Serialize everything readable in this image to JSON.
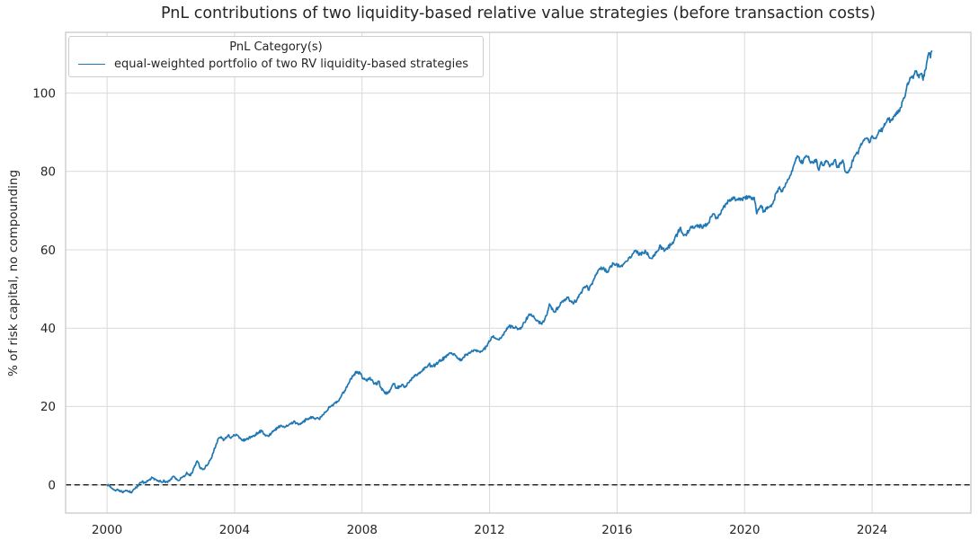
{
  "chart_data": {
    "type": "line",
    "title": "PnL contributions of two liquidity-based relative value strategies (before transaction costs)",
    "xlabel": "",
    "ylabel": "% of risk capital, no compounding",
    "xlim": [
      1998.7,
      2027.1
    ],
    "ylim": [
      -7.2,
      115.5
    ],
    "xticks": [
      2000,
      2004,
      2008,
      2012,
      2016,
      2020,
      2024
    ],
    "yticks": [
      0,
      20,
      40,
      60,
      80,
      100
    ],
    "grid": true,
    "legend_position": "upper left",
    "zero_line": {
      "y": 0,
      "style": "dashed",
      "color": "#000000"
    },
    "legend": {
      "title": "PnL Category(s)"
    },
    "series": [
      {
        "name": "equal-weighted portfolio of two RV liquidity-based strategies",
        "color": "#1f77b4",
        "points": [
          [
            2000.0,
            0.0
          ],
          [
            2000.08,
            -0.3
          ],
          [
            2000.16,
            -0.9
          ],
          [
            2000.25,
            -1.4
          ],
          [
            2000.33,
            -1.1
          ],
          [
            2000.42,
            -1.7
          ],
          [
            2000.5,
            -2.0
          ],
          [
            2000.58,
            -1.4
          ],
          [
            2000.67,
            -1.7
          ],
          [
            2000.75,
            -1.9
          ],
          [
            2000.83,
            -1.2
          ],
          [
            2000.92,
            -0.7
          ],
          [
            2001.0,
            0.2
          ],
          [
            2001.1,
            0.8
          ],
          [
            2001.2,
            0.5
          ],
          [
            2001.3,
            1.2
          ],
          [
            2001.42,
            1.8
          ],
          [
            2001.5,
            1.5
          ],
          [
            2001.6,
            1.1
          ],
          [
            2001.7,
            0.8
          ],
          [
            2001.8,
            1.0
          ],
          [
            2001.9,
            0.6
          ],
          [
            2002.0,
            1.5
          ],
          [
            2002.08,
            2.2
          ],
          [
            2002.17,
            1.6
          ],
          [
            2002.25,
            1.1
          ],
          [
            2002.33,
            1.8
          ],
          [
            2002.42,
            2.1
          ],
          [
            2002.5,
            3.2
          ],
          [
            2002.58,
            2.4
          ],
          [
            2002.67,
            3.0
          ],
          [
            2002.75,
            4.9
          ],
          [
            2002.83,
            6.1
          ],
          [
            2002.9,
            4.7
          ],
          [
            2003.0,
            3.9
          ],
          [
            2003.08,
            4.5
          ],
          [
            2003.17,
            5.3
          ],
          [
            2003.25,
            6.6
          ],
          [
            2003.33,
            8.2
          ],
          [
            2003.42,
            10.4
          ],
          [
            2003.5,
            11.9
          ],
          [
            2003.58,
            12.3
          ],
          [
            2003.65,
            11.3
          ],
          [
            2003.72,
            12.1
          ],
          [
            2003.8,
            12.7
          ],
          [
            2003.88,
            11.9
          ],
          [
            2003.95,
            12.4
          ],
          [
            2004.05,
            12.9
          ],
          [
            2004.15,
            11.9
          ],
          [
            2004.25,
            11.3
          ],
          [
            2004.35,
            11.6
          ],
          [
            2004.45,
            12.0
          ],
          [
            2004.55,
            12.2
          ],
          [
            2004.65,
            12.8
          ],
          [
            2004.75,
            13.4
          ],
          [
            2004.85,
            13.7
          ],
          [
            2004.95,
            12.9
          ],
          [
            2005.05,
            12.5
          ],
          [
            2005.15,
            13.1
          ],
          [
            2005.25,
            14.0
          ],
          [
            2005.35,
            14.5
          ],
          [
            2005.45,
            15.2
          ],
          [
            2005.55,
            14.8
          ],
          [
            2005.65,
            15.0
          ],
          [
            2005.75,
            15.7
          ],
          [
            2005.85,
            16.1
          ],
          [
            2005.95,
            15.8
          ],
          [
            2006.05,
            15.6
          ],
          [
            2006.15,
            16.2
          ],
          [
            2006.25,
            16.7
          ],
          [
            2006.35,
            17.1
          ],
          [
            2006.45,
            17.4
          ],
          [
            2006.55,
            17.0
          ],
          [
            2006.65,
            16.8
          ],
          [
            2006.75,
            17.8
          ],
          [
            2006.85,
            18.5
          ],
          [
            2006.95,
            19.7
          ],
          [
            2007.05,
            20.3
          ],
          [
            2007.15,
            20.9
          ],
          [
            2007.25,
            21.4
          ],
          [
            2007.35,
            22.7
          ],
          [
            2007.45,
            24.0
          ],
          [
            2007.55,
            25.6
          ],
          [
            2007.65,
            27.1
          ],
          [
            2007.75,
            28.2
          ],
          [
            2007.85,
            28.9
          ],
          [
            2007.95,
            28.3
          ],
          [
            2008.05,
            27.0
          ],
          [
            2008.15,
            26.5
          ],
          [
            2008.25,
            27.4
          ],
          [
            2008.35,
            26.2
          ],
          [
            2008.45,
            25.6
          ],
          [
            2008.52,
            26.5
          ],
          [
            2008.6,
            24.8
          ],
          [
            2008.7,
            23.6
          ],
          [
            2008.8,
            23.3
          ],
          [
            2008.9,
            24.4
          ],
          [
            2009.0,
            25.8
          ],
          [
            2009.08,
            24.7
          ],
          [
            2009.17,
            25.1
          ],
          [
            2009.25,
            25.6
          ],
          [
            2009.33,
            24.9
          ],
          [
            2009.42,
            25.9
          ],
          [
            2009.5,
            26.6
          ],
          [
            2009.6,
            27.3
          ],
          [
            2009.7,
            28.1
          ],
          [
            2009.8,
            28.7
          ],
          [
            2009.9,
            29.3
          ],
          [
            2010.0,
            30.1
          ],
          [
            2010.1,
            30.8
          ],
          [
            2010.2,
            30.2
          ],
          [
            2010.3,
            30.6
          ],
          [
            2010.4,
            31.4
          ],
          [
            2010.5,
            31.9
          ],
          [
            2010.6,
            32.5
          ],
          [
            2010.7,
            33.1
          ],
          [
            2010.8,
            33.7
          ],
          [
            2010.9,
            33.4
          ],
          [
            2011.0,
            32.3
          ],
          [
            2011.08,
            31.7
          ],
          [
            2011.17,
            32.5
          ],
          [
            2011.25,
            33.1
          ],
          [
            2011.33,
            33.5
          ],
          [
            2011.42,
            33.9
          ],
          [
            2011.5,
            34.4
          ],
          [
            2011.6,
            34.0
          ],
          [
            2011.7,
            33.8
          ],
          [
            2011.8,
            34.5
          ],
          [
            2011.9,
            35.3
          ],
          [
            2012.0,
            36.6
          ],
          [
            2012.1,
            37.7
          ],
          [
            2012.2,
            37.3
          ],
          [
            2012.3,
            37.0
          ],
          [
            2012.4,
            38.1
          ],
          [
            2012.5,
            39.2
          ],
          [
            2012.6,
            40.3
          ],
          [
            2012.7,
            40.6
          ],
          [
            2012.8,
            40.1
          ],
          [
            2012.9,
            39.8
          ],
          [
            2013.0,
            40.2
          ],
          [
            2013.1,
            41.5
          ],
          [
            2013.2,
            42.9
          ],
          [
            2013.3,
            43.6
          ],
          [
            2013.4,
            42.7
          ],
          [
            2013.5,
            42.0
          ],
          [
            2013.6,
            41.2
          ],
          [
            2013.7,
            41.6
          ],
          [
            2013.8,
            43.4
          ],
          [
            2013.88,
            46.2
          ],
          [
            2013.95,
            44.8
          ],
          [
            2014.05,
            44.2
          ],
          [
            2014.15,
            45.3
          ],
          [
            2014.25,
            46.5
          ],
          [
            2014.35,
            47.3
          ],
          [
            2014.45,
            47.8
          ],
          [
            2014.55,
            46.9
          ],
          [
            2014.65,
            46.5
          ],
          [
            2014.75,
            47.4
          ],
          [
            2014.85,
            48.8
          ],
          [
            2014.95,
            50.4
          ],
          [
            2015.05,
            50.9
          ],
          [
            2015.12,
            49.7
          ],
          [
            2015.2,
            51.3
          ],
          [
            2015.3,
            52.9
          ],
          [
            2015.4,
            54.7
          ],
          [
            2015.5,
            55.6
          ],
          [
            2015.6,
            55.0
          ],
          [
            2015.7,
            54.5
          ],
          [
            2015.8,
            55.9
          ],
          [
            2015.9,
            56.5
          ],
          [
            2016.0,
            56.1
          ],
          [
            2016.1,
            55.7
          ],
          [
            2016.2,
            56.4
          ],
          [
            2016.3,
            57.1
          ],
          [
            2016.4,
            58.2
          ],
          [
            2016.5,
            59.0
          ],
          [
            2016.6,
            59.7
          ],
          [
            2016.7,
            58.7
          ],
          [
            2016.8,
            59.2
          ],
          [
            2016.9,
            59.5
          ],
          [
            2017.0,
            58.2
          ],
          [
            2017.08,
            57.8
          ],
          [
            2017.17,
            58.8
          ],
          [
            2017.25,
            59.6
          ],
          [
            2017.33,
            60.9
          ],
          [
            2017.42,
            60.2
          ],
          [
            2017.5,
            59.9
          ],
          [
            2017.6,
            60.7
          ],
          [
            2017.7,
            61.3
          ],
          [
            2017.8,
            62.6
          ],
          [
            2017.9,
            64.2
          ],
          [
            2017.97,
            65.5
          ],
          [
            2018.05,
            64.3
          ],
          [
            2018.15,
            63.8
          ],
          [
            2018.25,
            64.9
          ],
          [
            2018.35,
            65.6
          ],
          [
            2018.45,
            66.0
          ],
          [
            2018.55,
            66.3
          ],
          [
            2018.65,
            65.8
          ],
          [
            2018.75,
            66.1
          ],
          [
            2018.85,
            66.8
          ],
          [
            2018.95,
            68.4
          ],
          [
            2019.02,
            69.1
          ],
          [
            2019.1,
            67.9
          ],
          [
            2019.2,
            68.8
          ],
          [
            2019.3,
            70.2
          ],
          [
            2019.4,
            71.7
          ],
          [
            2019.5,
            72.6
          ],
          [
            2019.6,
            73.2
          ],
          [
            2019.7,
            73.0
          ],
          [
            2019.8,
            72.7
          ],
          [
            2019.9,
            73.1
          ],
          [
            2020.0,
            73.3
          ],
          [
            2020.1,
            73.6
          ],
          [
            2020.2,
            73.2
          ],
          [
            2020.3,
            73.4
          ],
          [
            2020.38,
            69.2
          ],
          [
            2020.45,
            70.3
          ],
          [
            2020.52,
            71.3
          ],
          [
            2020.6,
            69.7
          ],
          [
            2020.7,
            70.4
          ],
          [
            2020.8,
            71.1
          ],
          [
            2020.9,
            72.2
          ],
          [
            2021.0,
            74.5
          ],
          [
            2021.08,
            75.7
          ],
          [
            2021.17,
            75.1
          ],
          [
            2021.25,
            75.9
          ],
          [
            2021.33,
            77.2
          ],
          [
            2021.42,
            78.8
          ],
          [
            2021.5,
            80.1
          ],
          [
            2021.58,
            82.4
          ],
          [
            2021.67,
            83.9
          ],
          [
            2021.75,
            82.6
          ],
          [
            2021.83,
            82.1
          ],
          [
            2021.9,
            83.5
          ],
          [
            2021.97,
            83.8
          ],
          [
            2022.05,
            82.6
          ],
          [
            2022.15,
            82.1
          ],
          [
            2022.25,
            83.1
          ],
          [
            2022.33,
            80.3
          ],
          [
            2022.42,
            82.3
          ],
          [
            2022.5,
            81.7
          ],
          [
            2022.58,
            82.7
          ],
          [
            2022.67,
            81.2
          ],
          [
            2022.75,
            82.0
          ],
          [
            2022.83,
            83.0
          ],
          [
            2022.9,
            81.0
          ],
          [
            2023.0,
            81.9
          ],
          [
            2023.08,
            82.9
          ],
          [
            2023.17,
            80.0
          ],
          [
            2023.25,
            79.7
          ],
          [
            2023.33,
            81.0
          ],
          [
            2023.42,
            83.3
          ],
          [
            2023.5,
            84.5
          ],
          [
            2023.58,
            85.3
          ],
          [
            2023.67,
            86.8
          ],
          [
            2023.75,
            87.9
          ],
          [
            2023.83,
            88.5
          ],
          [
            2023.9,
            87.5
          ],
          [
            2024.0,
            89.1
          ],
          [
            2024.08,
            88.5
          ],
          [
            2024.17,
            89.3
          ],
          [
            2024.25,
            90.3
          ],
          [
            2024.33,
            90.9
          ],
          [
            2024.42,
            92.3
          ],
          [
            2024.5,
            93.6
          ],
          [
            2024.58,
            92.9
          ],
          [
            2024.67,
            94.0
          ],
          [
            2024.75,
            95.0
          ],
          [
            2024.83,
            95.7
          ],
          [
            2024.9,
            96.3
          ],
          [
            2025.0,
            98.8
          ],
          [
            2025.08,
            101.2
          ],
          [
            2025.17,
            103.1
          ],
          [
            2025.25,
            104.0
          ],
          [
            2025.33,
            104.8
          ],
          [
            2025.4,
            105.5
          ],
          [
            2025.47,
            103.9
          ],
          [
            2025.53,
            104.9
          ],
          [
            2025.6,
            103.3
          ],
          [
            2025.67,
            105.9
          ],
          [
            2025.73,
            108.4
          ],
          [
            2025.78,
            110.3
          ],
          [
            2025.83,
            109.0
          ],
          [
            2025.87,
            110.7
          ]
        ]
      }
    ]
  },
  "theme": {
    "text_color": "#262626",
    "grid_color": "#d9d9d9",
    "spine_color": "#c9c9c9",
    "background": "#ffffff",
    "line_color": "#1f77b4",
    "zero_line_color": "#000000"
  }
}
